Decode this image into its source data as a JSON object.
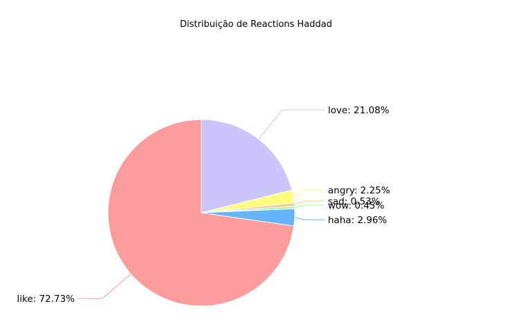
{
  "chart_data": {
    "type": "pie",
    "title": "Distribuição de Reactions Haddad",
    "start_angle_deg": 90,
    "direction": "clockwise",
    "slices": [
      {
        "name": "love",
        "value": 21.08,
        "label": "love: 21.08%",
        "color": "#ccc4fc"
      },
      {
        "name": "angry",
        "value": 2.25,
        "label": "angry: 2.25%",
        "color": "#fdfd7c"
      },
      {
        "name": "sad",
        "value": 0.53,
        "label": "sad: 0.53%",
        "color": "#fbc490"
      },
      {
        "name": "wow",
        "value": 0.45,
        "label": "wow: 0.45%",
        "color": "#a4fb9c"
      },
      {
        "name": "haha",
        "value": 2.96,
        "label": "haha: 2.96%",
        "color": "#64b4fc"
      },
      {
        "name": "like",
        "value": 72.73,
        "label": "like: 72.73%",
        "color": "#fc9c9c"
      }
    ]
  }
}
